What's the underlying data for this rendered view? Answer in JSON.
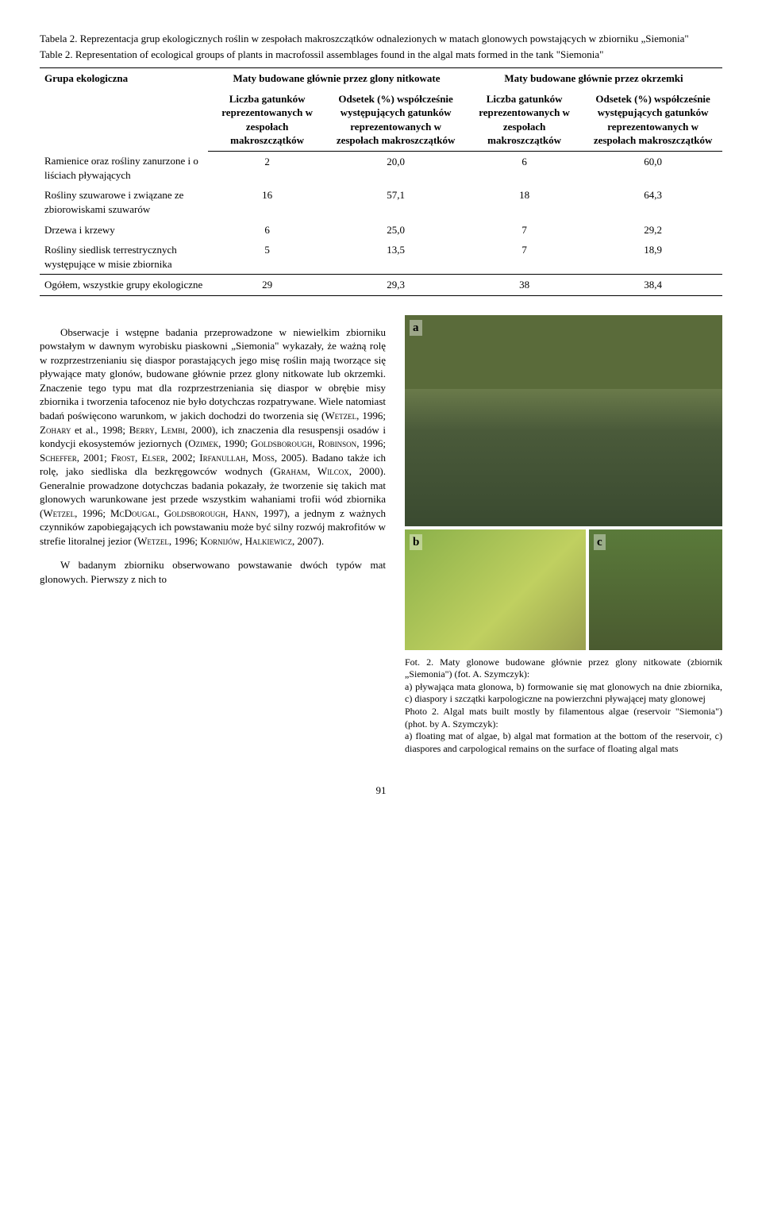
{
  "caption": {
    "pl": "Tabela 2. Reprezentacja grup ekologicznych roślin w zespołach makroszczątków odnalezionych w matach glonowych powstających w zbiorniku „Siemonia\"",
    "en": "Table 2. Representation of ecological groups of plants in macrofossil assemblages found in the algal mats formed in the tank \"Siemonia\""
  },
  "table": {
    "header": {
      "group_label": "Grupa ekologiczna",
      "mat1_title": "Maty budowane głównie przez glony nitkowate",
      "mat2_title": "Maty budowane głównie przez okrzemki",
      "col1": "Liczba gatunków reprezentowanych w zespołach makroszczątków",
      "col2": "Odsetek (%) współcześnie występujących gatunków reprezentowanych w zespołach makroszczątków",
      "col3": "Liczba gatunków reprezentowanych w zespołach makroszczątków",
      "col4": "Odsetek (%) współcześnie występujących gatunków reprezentowanych w zespołach makroszczątków"
    },
    "rows": [
      {
        "label": "Ramienice oraz rośliny zanurzone i o liściach pływających",
        "v1": "2",
        "v2": "20,0",
        "v3": "6",
        "v4": "60,0"
      },
      {
        "label": "Rośliny szuwarowe i związane ze zbiorowiskami szuwarów",
        "v1": "16",
        "v2": "57,1",
        "v3": "18",
        "v4": "64,3"
      },
      {
        "label": "Drzewa i krzewy",
        "v1": "6",
        "v2": "25,0",
        "v3": "7",
        "v4": "29,2"
      },
      {
        "label": "Rośliny siedlisk terrestrycznych występujące w misie zbiornika",
        "v1": "5",
        "v2": "13,5",
        "v3": "7",
        "v4": "18,9"
      },
      {
        "label": "Ogółem, wszystkie grupy ekologiczne",
        "v1": "29",
        "v2": "29,3",
        "v3": "38",
        "v4": "38,4"
      }
    ]
  },
  "body_text": {
    "p1a": "Obserwacje i wstępne badania przeprowadzone w niewielkim zbiorniku powstałym w dawnym wyrobisku piaskowni „Siemonia\" wykazały, że ważną rolę w rozprzestrzenianiu się diaspor porastających jego misę roślin mają tworzące się pływające maty glonów, budowane głównie przez glony nitkowate lub okrzemki. Znaczenie tego typu mat dla rozprzestrzeniania się diaspor w obrębie misy zbiornika i tworzenia tafocenoz nie było dotychczas rozpatrywane. Wiele natomiast badań poświęcono warunkom, w jakich dochodzi do tworzenia się (",
    "ref1": "Wetzel",
    "p1b": ", 1996; ",
    "ref2": "Zohary",
    "p1c": " et al., 1998; ",
    "ref3": "Berry, Lembi",
    "p1d": ", 2000), ich znaczenia dla resuspensji osadów i kondycji ekosystemów jeziornych (",
    "ref4": "Ozimek",
    "p1e": ", 1990; ",
    "ref5": "Goldsborough, Robinson",
    "p1f": ", 1996; ",
    "ref6": "Scheffer",
    "p1g": ", 2001; ",
    "ref7": "Frost, Elser",
    "p1h": ", 2002; ",
    "ref8": "Irfanullah, Moss",
    "p1i": ", 2005). Badano także ich rolę, jako siedliska dla bezkręgowców wodnych (",
    "ref9": "Graham, Wilcox",
    "p1j": ", 2000). Generalnie prowadzone dotychczas badania pokazały, że tworzenie się takich mat glonowych warunkowane jest przede wszystkim wahaniami trofii wód zbiornika (",
    "ref10": "Wetzel",
    "p1k": ", 1996; ",
    "ref11": "McDougal, Goldsborough, Hann",
    "p1l": ", 1997), a jednym z ważnych czynników zapobiegających ich powstawaniu może być silny rozwój makrofitów w strefie litoralnej jezior (",
    "ref12": "Wetzel",
    "p1m": ", 1996; ",
    "ref13": "Kornijów, Halkiewicz",
    "p1n": ", 2007).",
    "p2": "W badanym zbiorniku obserwowano powstawanie dwóch typów mat glonowych. Pierwszy z nich to"
  },
  "photo": {
    "label_a": "a",
    "label_b": "b",
    "label_c": "c",
    "caption_pl": "Fot. 2. Maty glonowe budowane głównie przez glony nitkowate (zbiornik „Siemonia\") (fot. A. Szymczyk):",
    "caption_pl_detail": "a) pływająca mata glonowa, b) formowanie się mat glonowych na dnie zbiornika, c) diaspory i szczątki karpologiczne na powierzchni pływającej maty glonowej",
    "caption_en": "Photo 2. Algal mats built mostly by filamentous algae (reservoir \"Siemonia\") (phot. by A. Szymczyk):",
    "caption_en_detail": "a) floating mat of algae, b) algal mat formation at the bottom of the reservoir, c) diaspores and carpological remains on the surface of floating algal mats"
  },
  "page_number": "91"
}
